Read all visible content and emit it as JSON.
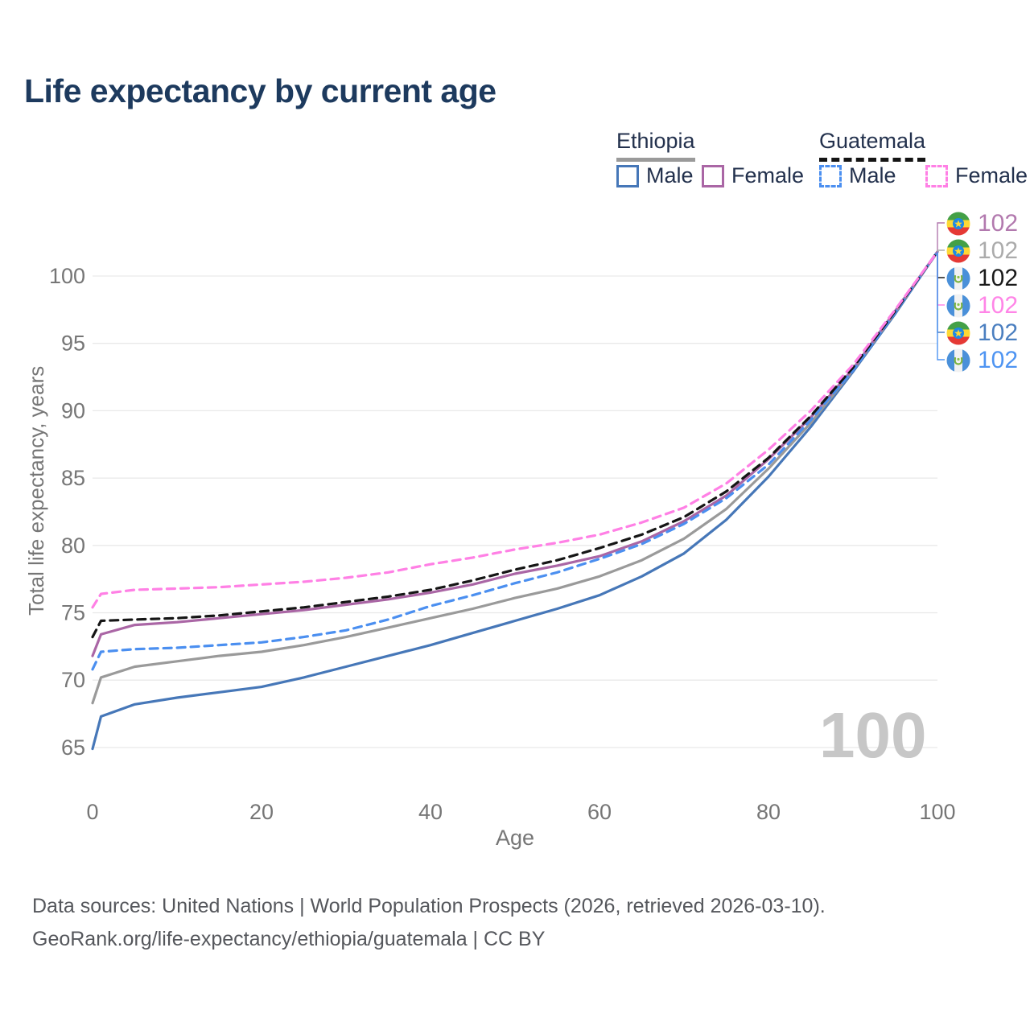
{
  "page": {
    "title": "Life expectancy by current age"
  },
  "legend": {
    "groups": [
      {
        "country": "Ethiopia",
        "line_style": "solid",
        "underline_color": "#9a9a9a",
        "items": [
          {
            "label": "Male",
            "color": "#4677b8",
            "dashed": false
          },
          {
            "label": "Female",
            "color": "#aa66a5",
            "dashed": false
          }
        ]
      },
      {
        "country": "Guatemala",
        "line_style": "dashed",
        "underline_color": "#141414",
        "items": [
          {
            "label": "Male",
            "color": "#4b8ff0",
            "dashed": true
          },
          {
            "label": "Female",
            "color": "#ff80e5",
            "dashed": true
          }
        ]
      }
    ]
  },
  "chart_data": {
    "type": "line",
    "title": "Life expectancy by current age",
    "xlabel": "Age",
    "ylabel": "Total life expectancy, years",
    "xlim": [
      0,
      100
    ],
    "ylim": [
      63,
      103
    ],
    "xticks": [
      0,
      20,
      40,
      60,
      80,
      100
    ],
    "yticks": [
      65,
      70,
      75,
      80,
      85,
      90,
      95,
      100
    ],
    "grid": "horizontal",
    "legend_position": "top-right",
    "x": [
      0,
      1,
      5,
      10,
      15,
      20,
      25,
      30,
      35,
      40,
      45,
      50,
      55,
      60,
      65,
      70,
      75,
      80,
      85,
      90,
      95,
      100
    ],
    "series": [
      {
        "name": "Ethiopia Male",
        "country": "ethiopia",
        "sex": "male",
        "color": "#4677b8",
        "dashed": false,
        "values": [
          64.9,
          67.3,
          68.2,
          68.7,
          69.1,
          69.5,
          70.2,
          71.0,
          71.8,
          72.6,
          73.5,
          74.4,
          75.3,
          76.3,
          77.7,
          79.4,
          81.9,
          85.1,
          88.8,
          92.9,
          97.2,
          101.8
        ]
      },
      {
        "name": "Ethiopia Both sexes",
        "country": "ethiopia",
        "sex": "both",
        "color": "#9a9a9a",
        "dashed": false,
        "values": [
          68.3,
          70.2,
          71.0,
          71.4,
          71.8,
          72.1,
          72.6,
          73.2,
          73.9,
          74.6,
          75.3,
          76.1,
          76.8,
          77.7,
          78.9,
          80.5,
          82.7,
          85.7,
          89.1,
          93.0,
          97.3,
          101.8
        ]
      },
      {
        "name": "Ethiopia Female",
        "country": "ethiopia",
        "sex": "female",
        "color": "#aa66a5",
        "dashed": false,
        "values": [
          71.8,
          73.4,
          74.1,
          74.3,
          74.6,
          74.9,
          75.2,
          75.6,
          76.0,
          76.5,
          77.1,
          77.9,
          78.5,
          79.2,
          80.3,
          81.8,
          83.7,
          86.4,
          89.5,
          93.1,
          97.4,
          101.8
        ]
      },
      {
        "name": "Guatemala Male",
        "country": "guatemala",
        "sex": "male",
        "color": "#4b8ff0",
        "dashed": true,
        "values": [
          70.8,
          72.1,
          72.3,
          72.4,
          72.6,
          72.8,
          73.2,
          73.7,
          74.5,
          75.5,
          76.3,
          77.2,
          78.0,
          79.0,
          80.1,
          81.6,
          83.5,
          86.0,
          89.3,
          93.0,
          97.3,
          101.8
        ]
      },
      {
        "name": "Guatemala Both sexes",
        "country": "guatemala",
        "sex": "both",
        "color": "#151515",
        "dashed": true,
        "values": [
          73.2,
          74.4,
          74.5,
          74.6,
          74.8,
          75.1,
          75.4,
          75.8,
          76.2,
          76.7,
          77.4,
          78.2,
          78.9,
          79.8,
          80.8,
          82.1,
          84.0,
          86.5,
          89.6,
          93.2,
          97.4,
          101.8
        ]
      },
      {
        "name": "Guatemala Female",
        "country": "guatemala",
        "sex": "female",
        "color": "#ff80e5",
        "dashed": true,
        "values": [
          75.4,
          76.4,
          76.7,
          76.8,
          76.9,
          77.1,
          77.3,
          77.6,
          78.0,
          78.6,
          79.1,
          79.7,
          80.2,
          80.8,
          81.7,
          82.8,
          84.6,
          87.1,
          90.0,
          93.4,
          97.5,
          101.8
        ]
      }
    ]
  },
  "endpoint_labels": [
    {
      "flag": "ethiopia",
      "value": "102",
      "color": "#b279ae",
      "series": "Ethiopia Female"
    },
    {
      "flag": "ethiopia",
      "value": "102",
      "color": "#ababab",
      "series": "Ethiopia Both sexes"
    },
    {
      "flag": "guatemala",
      "value": "102",
      "color": "#1a1a1a",
      "series": "Guatemala Both sexes"
    },
    {
      "flag": "guatemala",
      "value": "102",
      "color": "#ff85e7",
      "series": "Guatemala Female"
    },
    {
      "flag": "ethiopia",
      "value": "102",
      "color": "#4b7fc0",
      "series": "Ethiopia Male"
    },
    {
      "flag": "guatemala",
      "value": "102",
      "color": "#4e94f2",
      "series": "Guatemala Male"
    }
  ],
  "watermark": {
    "text": "100"
  },
  "footer": {
    "line1": "Data sources: United Nations | World Population Prospects (2026, retrieved 2026-03-10).",
    "line2": "GeoRank.org/life-expectancy/ethiopia/guatemala | CC BY"
  }
}
